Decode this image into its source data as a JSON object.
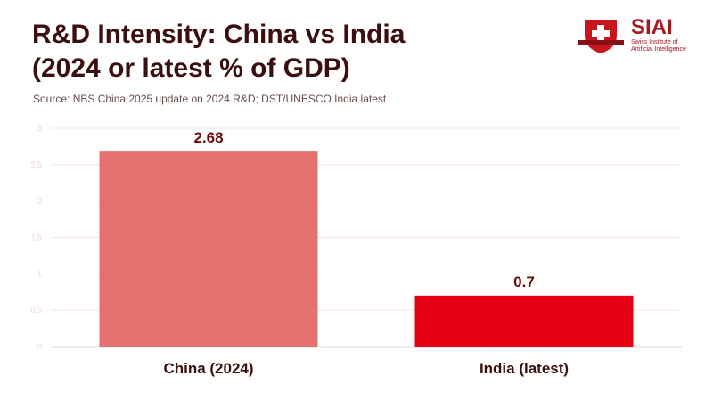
{
  "header": {
    "title_line1": "R&D Intensity: China vs India",
    "title_line2": "(2024 or latest % of GDP)",
    "source": "Source: NBS China 2025 update on 2024 R&D; DST/UNESCO India latest"
  },
  "logo": {
    "name": "SIAI",
    "subtitle_line1": "Swiss Institute of",
    "subtitle_line2": "Artificial Intelligence"
  },
  "chart_data": {
    "type": "bar",
    "title": "R&D Intensity: China vs India (2024 or latest % of GDP)",
    "xlabel": "",
    "ylabel": "",
    "categories": [
      "China (2024)",
      "India (latest)"
    ],
    "values": [
      2.68,
      0.7
    ],
    "data_labels": [
      "2.68",
      "0.7"
    ],
    "colors": [
      "#e57070",
      "#e60012"
    ],
    "ylim": [
      0,
      3
    ],
    "yticks": [
      0,
      0.5,
      1,
      1.5,
      2,
      2.5,
      3
    ],
    "ytick_labels": [
      "0",
      "0.5",
      "1",
      "1.5",
      "2",
      "2.5",
      "3"
    ],
    "grid": true,
    "legend": "none"
  }
}
